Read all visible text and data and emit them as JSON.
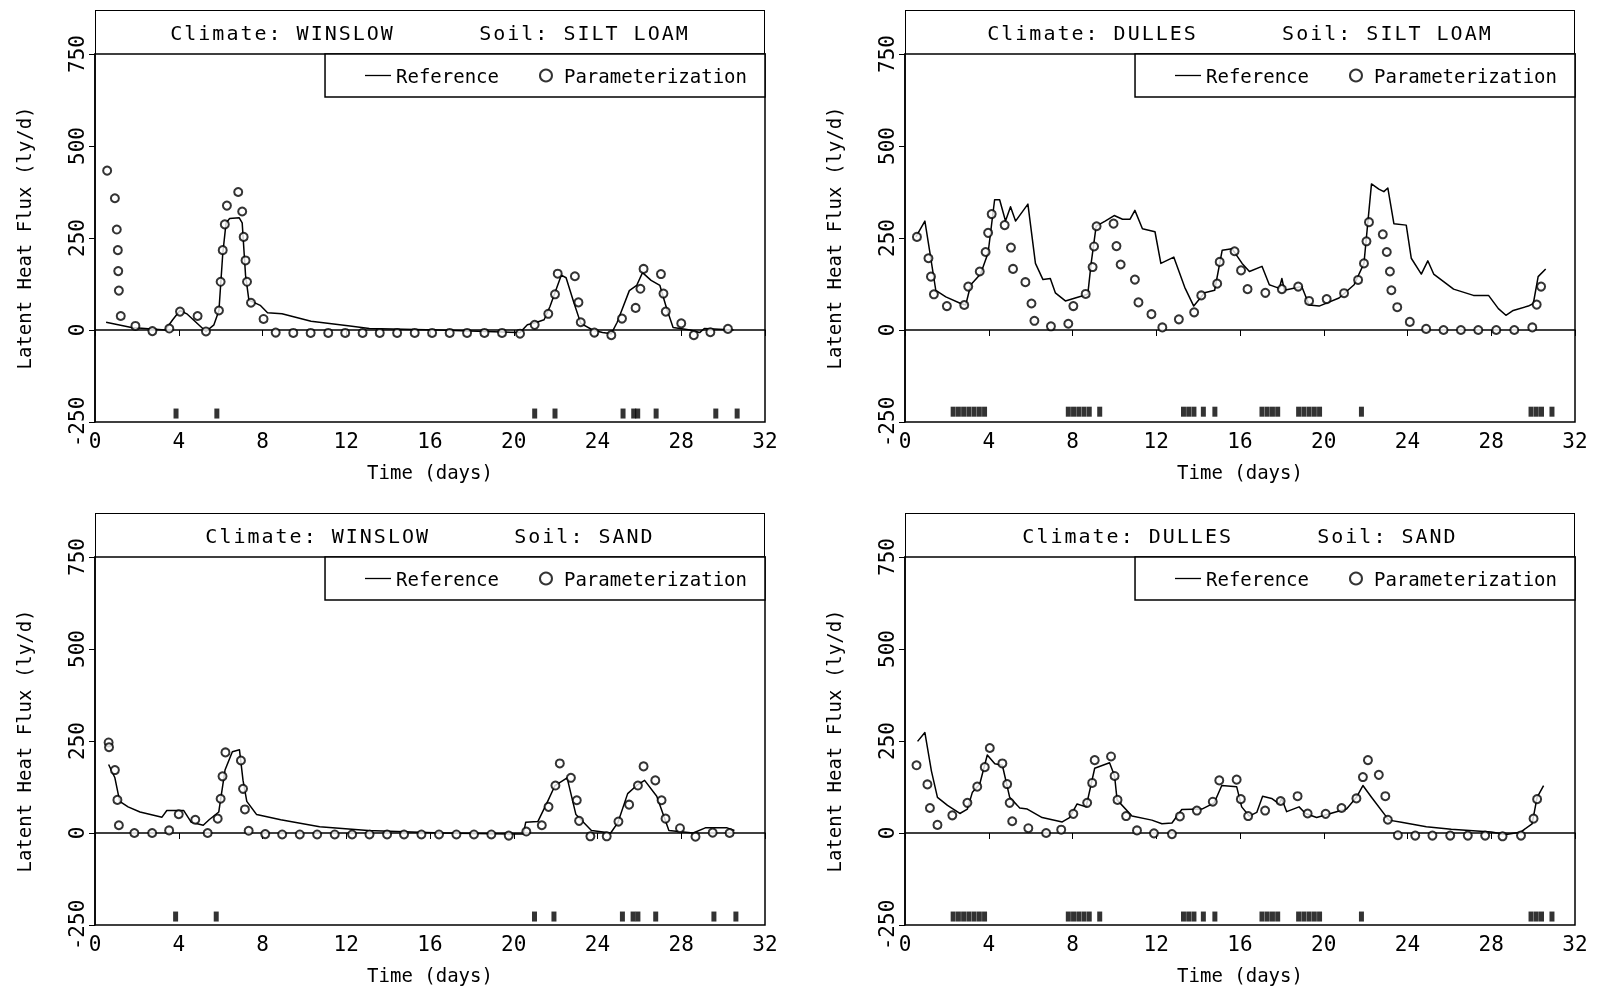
{
  "chart_data": [
    {
      "type": "line",
      "title": "Climate: WINSLOW      Soil: SILT LOAM",
      "xlabel": "Time (days)",
      "ylabel": "Latent Heat Flux (ly/d)",
      "xlim": [
        0,
        32
      ],
      "xticks": [
        0,
        4,
        8,
        12,
        16,
        20,
        24,
        28,
        32
      ],
      "ylim": [
        -250,
        750
      ],
      "yticks": [
        -250,
        0,
        250,
        500,
        750
      ],
      "legend": "top right",
      "series": [
        {
          "name": "Reference",
          "color": "#000000",
          "marker": "none",
          "line_style": "solid",
          "x": [
            0.53,
            1.74,
            3.36,
            3.71,
            4.06,
            4.41,
            5.3,
            5.68,
            5.92,
            6.1,
            6.26,
            6.43,
            6.89,
            7.03,
            7.19,
            7.35,
            7.59,
            7.89,
            8.24,
            8.93,
            10.32,
            12.18,
            13.1,
            16.36,
            20.3,
            20.65,
            21.1,
            21.45,
            21.73,
            22.27,
            22.5,
            22.85,
            23.2,
            23.77,
            24.24,
            24.66,
            24.94,
            25.52,
            25.87,
            26.15,
            26.56,
            26.98,
            27.31,
            27.61,
            28.42,
            28.88,
            29.1,
            30.5
          ],
          "values": [
            21,
            7,
            0,
            28,
            53,
            43,
            -4,
            14,
            53,
            206,
            291,
            303,
            305,
            291,
            149,
            81,
            75,
            67,
            47,
            44,
            24,
            11,
            4,
            0,
            -7,
            14,
            21,
            28,
            64,
            149,
            142,
            78,
            18,
            0,
            -7,
            -10,
            21,
            107,
            121,
            156,
            135,
            121,
            57,
            7,
            0,
            -7,
            4,
            0
          ]
        },
        {
          "name": "Parameterization",
          "type": "scatter",
          "color": "#000000",
          "marker": "circle",
          "x": [
            0.58,
            0.95,
            1.04,
            1.09,
            1.11,
            1.14,
            1.23,
            1.93,
            2.74,
            3.55,
            4.06,
            4.9,
            5.3,
            5.92,
            6.0,
            6.1,
            6.2,
            6.3,
            6.84,
            7.03,
            7.1,
            7.19,
            7.26,
            7.45,
            8.05,
            8.63,
            9.47,
            10.3,
            11.14,
            11.95,
            12.78,
            13.6,
            14.43,
            15.27,
            16.1,
            16.94,
            17.77,
            18.6,
            19.44,
            20.3,
            21.0,
            21.65,
            21.97,
            22.1,
            22.92,
            23.09,
            23.2,
            23.85,
            24.66,
            25.17,
            25.82,
            26.05,
            26.2,
            27.03,
            27.15,
            27.26,
            28.0,
            28.6,
            29.39,
            30.23
          ],
          "values": [
            433,
            358,
            273,
            217,
            160,
            107,
            38,
            11,
            -3,
            4,
            50,
            38,
            -4,
            53,
            131,
            217,
            287,
            338,
            375,
            322,
            253,
            189,
            131,
            74,
            30,
            -7,
            -8,
            -8,
            -8,
            -8,
            -8,
            -8,
            -8,
            -8,
            -8,
            -8,
            -8,
            -8,
            -8,
            -10,
            14,
            44,
            97,
            153,
            146,
            75,
            21,
            -7,
            -14,
            31,
            60,
            112,
            166,
            152,
            99,
            50,
            18,
            -14,
            -6,
            3
          ]
        },
        {
          "type": "scatter",
          "color": "#000000",
          "marker": "square",
          "x": [
            3.87,
            5.82,
            21.0,
            21.97,
            25.22,
            25.73,
            25.92,
            26.8,
            29.65,
            30.67
          ],
          "values": [
            -227,
            -227,
            -227,
            -227,
            -227,
            -227,
            -227,
            -227,
            -227,
            -227
          ]
        }
      ]
    },
    {
      "type": "line",
      "title": "Climate: DULLES      Soil: SILT LOAM",
      "xlabel": "Time (days)",
      "ylabel": "Latent Heat Flux (ly/d)",
      "xlim": [
        0,
        32
      ],
      "xticks": [
        0,
        4,
        8,
        12,
        16,
        20,
        24,
        28,
        32
      ],
      "ylim": [
        -250,
        750
      ],
      "yticks": [
        -250,
        0,
        250,
        500,
        750
      ],
      "legend": "top right",
      "series": [
        {
          "name": "Reference",
          "color": "#000000",
          "marker": "none",
          "line_style": "solid",
          "x": [
            0.52,
            0.95,
            1.19,
            1.47,
            1.95,
            2.66,
            2.9,
            3.14,
            3.61,
            3.97,
            4.28,
            4.52,
            4.8,
            5.04,
            5.28,
            5.87,
            6.23,
            6.59,
            6.94,
            7.18,
            7.66,
            8.13,
            8.73,
            8.89,
            9.13,
            9.56,
            9.99,
            10.39,
            10.75,
            10.98,
            11.34,
            11.94,
            12.22,
            12.84,
            13.36,
            13.79,
            14.31,
            14.79,
            15.15,
            15.62,
            16.1,
            16.45,
            17.05,
            17.4,
            17.88,
            18.0,
            18.12,
            18.95,
            19.3,
            19.78,
            20.73,
            21.45,
            21.92,
            22.28,
            22.63,
            22.87,
            23.06,
            23.35,
            23.94,
            24.18,
            24.66,
            24.97,
            25.25,
            26.2,
            27.15,
            27.87,
            28.34,
            28.7,
            29.05,
            29.77,
            30.01,
            30.24,
            30.6
          ],
          "values": [
            253,
            296,
            210,
            108,
            90,
            72,
            68,
            123,
            152,
            210,
            354,
            354,
            296,
            335,
            296,
            342,
            181,
            137,
            140,
            101,
            79,
            87,
            97,
            181,
            282,
            296,
            311,
            301,
            301,
            325,
            275,
            267,
            181,
            198,
            116,
            65,
            101,
            108,
            217,
            221,
            181,
            159,
            173,
            123,
            113,
            140,
            108,
            118,
            68,
            65,
            87,
            123,
            181,
            397,
            383,
            376,
            386,
            289,
            285,
            195,
            152,
            188,
            152,
            111,
            94,
            94,
            58,
            40,
            53,
            65,
            72,
            145,
            166
          ]
        },
        {
          "name": "Parameterization",
          "type": "scatter",
          "color": "#000000",
          "marker": "circle",
          "x": [
            0.57,
            1.12,
            1.24,
            1.38,
            2.0,
            2.83,
            3.02,
            3.57,
            3.85,
            3.97,
            4.14,
            4.76,
            5.06,
            5.16,
            5.75,
            6.04,
            6.18,
            6.97,
            7.8,
            8.04,
            8.63,
            8.96,
            9.03,
            9.15,
            9.96,
            10.1,
            10.3,
            10.98,
            11.15,
            11.77,
            12.29,
            13.08,
            13.81,
            14.15,
            14.91,
            15.03,
            15.74,
            16.05,
            16.36,
            17.21,
            18.0,
            18.78,
            19.3,
            20.14,
            20.97,
            21.64,
            21.92,
            22.04,
            22.16,
            22.82,
            23.01,
            23.16,
            23.23,
            23.51,
            24.11,
            24.89,
            25.72,
            26.55,
            27.38,
            28.24,
            29.1,
            29.96,
            30.17,
            30.38
          ],
          "values": [
            253,
            195,
            145,
            97,
            65,
            68,
            118,
            159,
            212,
            264,
            315,
            285,
            224,
            166,
            130,
            72,
            25,
            10,
            17,
            65,
            98,
            171,
            227,
            282,
            289,
            228,
            178,
            137,
            75,
            43,
            7,
            29,
            48,
            94,
            126,
            185,
            214,
            162,
            111,
            101,
            111,
            118,
            79,
            84,
            100,
            136,
            181,
            241,
            293,
            260,
            212,
            159,
            108,
            62,
            22,
            3,
            0,
            0,
            0,
            0,
            0,
            7,
            69,
            118
          ]
        },
        {
          "type": "scatter",
          "color": "#000000",
          "marker": "square",
          "x": [
            2.3,
            2.55,
            2.8,
            3.05,
            3.3,
            3.55,
            3.8,
            7.8,
            8.05,
            8.3,
            8.55,
            8.8,
            9.3,
            13.3,
            13.55,
            13.8,
            14.25,
            14.8,
            17.05,
            17.3,
            17.55,
            17.8,
            18.8,
            19.05,
            19.3,
            19.55,
            19.8,
            21.8,
            29.9,
            30.15,
            30.4,
            30.9
          ],
          "values": [
            -222,
            -222,
            -222,
            -222,
            -222,
            -222,
            -222,
            -222,
            -222,
            -222,
            -222,
            -222,
            -222,
            -222,
            -222,
            -222,
            -222,
            -222,
            -222,
            -222,
            -222,
            -222,
            -222,
            -222,
            -222,
            -222,
            -222,
            -222,
            -222,
            -222,
            -222,
            -222
          ]
        }
      ]
    },
    {
      "type": "line",
      "title": "Climate: WINSLOW      Soil: SAND",
      "xlabel": "Time (days)",
      "ylabel": "Latent Heat Flux (ly/d)",
      "xlim": [
        0,
        32
      ],
      "xticks": [
        0,
        4,
        8,
        12,
        16,
        20,
        24,
        28,
        32
      ],
      "ylim": [
        -250,
        750
      ],
      "yticks": [
        -250,
        0,
        250,
        500,
        750
      ],
      "legend": "top right",
      "series": [
        {
          "name": "Reference",
          "color": "#000000",
          "marker": "none",
          "line_style": "solid",
          "x": [
            0.65,
            0.95,
            1.18,
            1.58,
            2.15,
            3.2,
            3.43,
            4.24,
            4.6,
            5.17,
            5.45,
            5.91,
            6.21,
            6.56,
            6.9,
            7.07,
            7.25,
            7.72,
            8.87,
            10.73,
            13.04,
            16.52,
            20.46,
            20.57,
            21.15,
            21.62,
            21.97,
            22.55,
            22.97,
            23.71,
            24.63,
            24.98,
            25.44,
            25.91,
            26.25,
            26.83,
            27.41,
            28.57,
            29.15,
            30.19,
            30.54
          ],
          "values": [
            186,
            150,
            86,
            71,
            57,
            43,
            61,
            61,
            29,
            21,
            36,
            57,
            171,
            221,
            226,
            143,
            86,
            50,
            36,
            17,
            7,
            0,
            -3,
            29,
            31,
            86,
            129,
            150,
            50,
            7,
            0,
            29,
            107,
            131,
            143,
            100,
            7,
            0,
            14,
            14,
            7
          ]
        },
        {
          "name": "Parameterization",
          "type": "scatter",
          "color": "#000000",
          "marker": "circle",
          "x": [
            0.65,
            0.67,
            0.95,
            1.07,
            1.14,
            1.88,
            2.73,
            3.54,
            4.0,
            4.79,
            5.38,
            5.86,
            6.0,
            6.09,
            6.23,
            6.97,
            7.07,
            7.16,
            7.34,
            8.13,
            8.94,
            9.78,
            10.61,
            11.45,
            12.28,
            13.11,
            13.95,
            14.76,
            15.59,
            16.43,
            17.26,
            18.1,
            18.93,
            19.76,
            20.6,
            21.34,
            21.66,
            21.99,
            22.2,
            22.73,
            23.01,
            23.12,
            23.66,
            24.44,
            25.0,
            25.51,
            25.93,
            26.2,
            26.76,
            27.06,
            27.25,
            27.94,
            28.68,
            29.5,
            30.31
          ],
          "values": [
            246,
            233,
            171,
            90,
            21,
            0,
            0,
            7,
            51,
            36,
            0,
            39,
            93,
            154,
            219,
            197,
            120,
            64,
            6,
            -3,
            -4,
            -4,
            -4,
            -4,
            -4,
            -4,
            -4,
            -4,
            -4,
            -4,
            -4,
            -4,
            -4,
            -7,
            4,
            21,
            71,
            129,
            189,
            150,
            89,
            33,
            -9,
            -9,
            31,
            77,
            129,
            181,
            143,
            89,
            39,
            13,
            -10,
            1,
            0
          ]
        },
        {
          "type": "scatter",
          "color": "#000000",
          "marker": "square",
          "x": [
            3.85,
            5.79,
            20.99,
            21.92,
            25.19,
            25.7,
            25.93,
            26.78,
            29.56,
            30.61
          ],
          "values": [
            -227,
            -227,
            -227,
            -227,
            -227,
            -227,
            -227,
            -227,
            -227,
            -227
          ]
        }
      ]
    },
    {
      "type": "line",
      "title": "Climate: DULLES      Soil: SAND",
      "xlabel": "Time (days)",
      "ylabel": "Latent Heat Flux (ly/d)",
      "xlim": [
        0,
        32
      ],
      "xticks": [
        0,
        4,
        8,
        12,
        16,
        20,
        24,
        28,
        32
      ],
      "ylim": [
        -250,
        750
      ],
      "yticks": [
        -250,
        0,
        250,
        500,
        750
      ],
      "legend": "top right",
      "series": [
        {
          "name": "Reference",
          "color": "#000000",
          "marker": "none",
          "line_style": "solid",
          "x": [
            0.6,
            0.95,
            1.26,
            1.55,
            2.03,
            2.62,
            2.98,
            3.22,
            3.57,
            3.93,
            4.29,
            4.65,
            5.0,
            5.48,
            5.84,
            6.55,
            7.51,
            7.86,
            8.22,
            8.65,
            9.06,
            9.77,
            10.01,
            10.13,
            10.84,
            11.79,
            12.27,
            12.75,
            13.22,
            14.18,
            14.77,
            15.13,
            15.84,
            16.08,
            16.44,
            16.8,
            17.08,
            17.51,
            17.87,
            17.99,
            18.23,
            18.82,
            19.13,
            19.66,
            20.61,
            21.09,
            21.56,
            21.87,
            22.28,
            23.11,
            23.71,
            24.9,
            26.09,
            28.0,
            28.71,
            29.42,
            29.95,
            30.19,
            30.5
          ],
          "values": [
            249,
            273,
            169,
            97,
            75,
            53,
            65,
            111,
            133,
            212,
            188,
            184,
            97,
            68,
            65,
            42,
            30,
            42,
            79,
            71,
            176,
            191,
            155,
            90,
            46,
            35,
            25,
            27,
            64,
            65,
            82,
            129,
            126,
            71,
            46,
            56,
            100,
            94,
            79,
            94,
            58,
            71,
            53,
            42,
            58,
            65,
            97,
            129,
            97,
            35,
            29,
            17,
            10,
            3,
            -4,
            3,
            25,
            97,
            129
          ]
        },
        {
          "name": "Parameterization",
          "type": "scatter",
          "color": "#000000",
          "marker": "circle",
          "x": [
            0.55,
            1.07,
            1.19,
            1.55,
            2.26,
            2.98,
            3.45,
            3.81,
            4.05,
            4.65,
            4.88,
            5.0,
            5.12,
            5.89,
            6.74,
            7.46,
            8.04,
            8.7,
            8.94,
            9.06,
            9.84,
            10.01,
            10.15,
            10.56,
            11.08,
            11.89,
            12.75,
            13.13,
            13.94,
            14.7,
            15.01,
            15.84,
            16.04,
            16.39,
            17.2,
            17.94,
            18.75,
            19.23,
            20.09,
            20.85,
            21.56,
            21.87,
            22.11,
            22.63,
            22.94,
            23.06,
            23.54,
            24.37,
            25.19,
            26.04,
            26.88,
            27.71,
            28.54,
            29.42,
            30.02,
            30.19
          ],
          "values": [
            184,
            132,
            68,
            22,
            48,
            82,
            126,
            179,
            231,
            189,
            133,
            82,
            32,
            13,
            0,
            9,
            52,
            82,
            136,
            198,
            208,
            155,
            90,
            46,
            7,
            -1,
            -3,
            45,
            61,
            85,
            143,
            145,
            92,
            46,
            61,
            87,
            100,
            53,
            52,
            68,
            94,
            152,
            198,
            158,
            100,
            36,
            -6,
            -7,
            -7,
            -7,
            -7,
            -7,
            -9,
            -7,
            39,
            92
          ]
        },
        {
          "type": "scatter",
          "color": "#000000",
          "marker": "square",
          "x": [
            2.3,
            2.55,
            2.8,
            3.05,
            3.3,
            3.55,
            3.8,
            7.8,
            8.05,
            8.3,
            8.55,
            8.8,
            9.3,
            13.3,
            13.55,
            13.8,
            14.25,
            14.8,
            17.05,
            17.3,
            17.55,
            17.8,
            18.8,
            19.05,
            19.3,
            19.55,
            19.8,
            21.8,
            29.9,
            30.15,
            30.4,
            30.9
          ],
          "values": [
            -227,
            -227,
            -227,
            -227,
            -227,
            -227,
            -227,
            -227,
            -227,
            -227,
            -227,
            -227,
            -227,
            -227,
            -227,
            -227,
            -227,
            -227,
            -227,
            -227,
            -227,
            -227,
            -227,
            -227,
            -227,
            -227,
            -227,
            -227,
            -227,
            -227,
            -227,
            -227
          ]
        }
      ]
    }
  ]
}
